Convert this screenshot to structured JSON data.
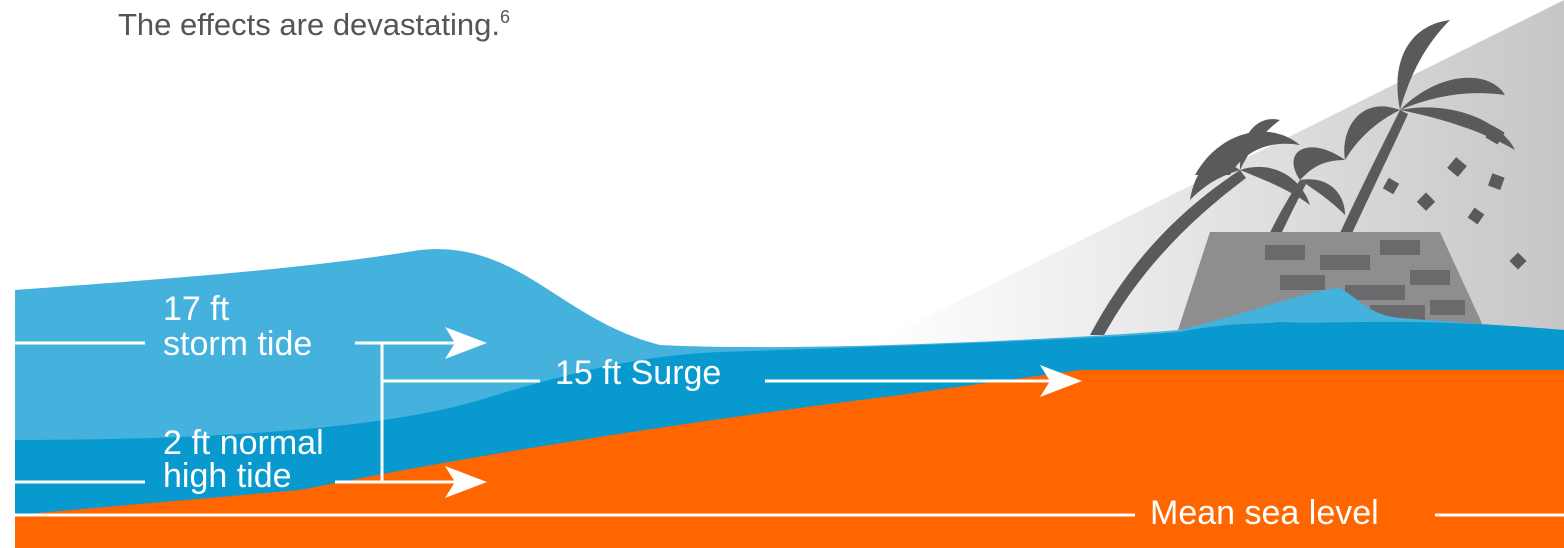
{
  "intro": {
    "text": "The effects are devastating.",
    "footnote": "6"
  },
  "labels": {
    "storm_tide": {
      "height": "17 ft",
      "name": "storm tide"
    },
    "surge": "15 ft Surge",
    "high_tide": {
      "height": "2 ft normal",
      "name": "high tide"
    },
    "mean_sea_level": "Mean sea level"
  }
}
